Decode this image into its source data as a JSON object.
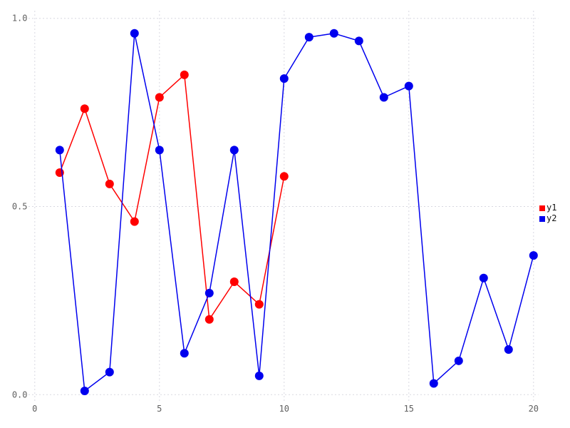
{
  "chart_data": {
    "type": "line",
    "title": "",
    "xlabel": "",
    "ylabel": "",
    "xlim": [
      0,
      20
    ],
    "ylim": [
      0.0,
      1.0
    ],
    "grid": true,
    "grid_style": "dotted",
    "x_ticks": [
      0,
      5,
      10,
      15,
      20
    ],
    "x_tick_labels": [
      "0",
      "5",
      "10",
      "15",
      "20"
    ],
    "y_ticks": [
      0.0,
      0.5,
      1.0
    ],
    "y_tick_labels": [
      "0.0",
      "0.5",
      "1.0"
    ],
    "legend_position": "right",
    "series": [
      {
        "name": "y1",
        "color": "#ff0000",
        "x": [
          1,
          2,
          3,
          4,
          5,
          6,
          7,
          8,
          9,
          10
        ],
        "values": [
          0.59,
          0.76,
          0.56,
          0.46,
          0.79,
          0.85,
          0.2,
          0.3,
          0.24,
          0.58
        ]
      },
      {
        "name": "y2",
        "color": "#0000ee",
        "x": [
          1,
          2,
          3,
          4,
          5,
          6,
          7,
          8,
          9,
          10,
          11,
          12,
          13,
          14,
          15,
          16,
          17,
          18,
          19,
          20
        ],
        "values": [
          0.65,
          0.01,
          0.06,
          0.96,
          0.65,
          0.11,
          0.27,
          0.65,
          0.05,
          0.84,
          0.95,
          0.96,
          0.94,
          0.79,
          0.82,
          0.03,
          0.09,
          0.31,
          0.12,
          0.37
        ]
      }
    ]
  },
  "legend": {
    "items": [
      {
        "label": "y1",
        "color": "#ff0000"
      },
      {
        "label": "y2",
        "color": "#0000ee"
      }
    ]
  },
  "colors": {
    "background": "#ffffff",
    "grid": "#d8d8e0",
    "tick_label": "#606060",
    "legend_text": "#111111"
  }
}
